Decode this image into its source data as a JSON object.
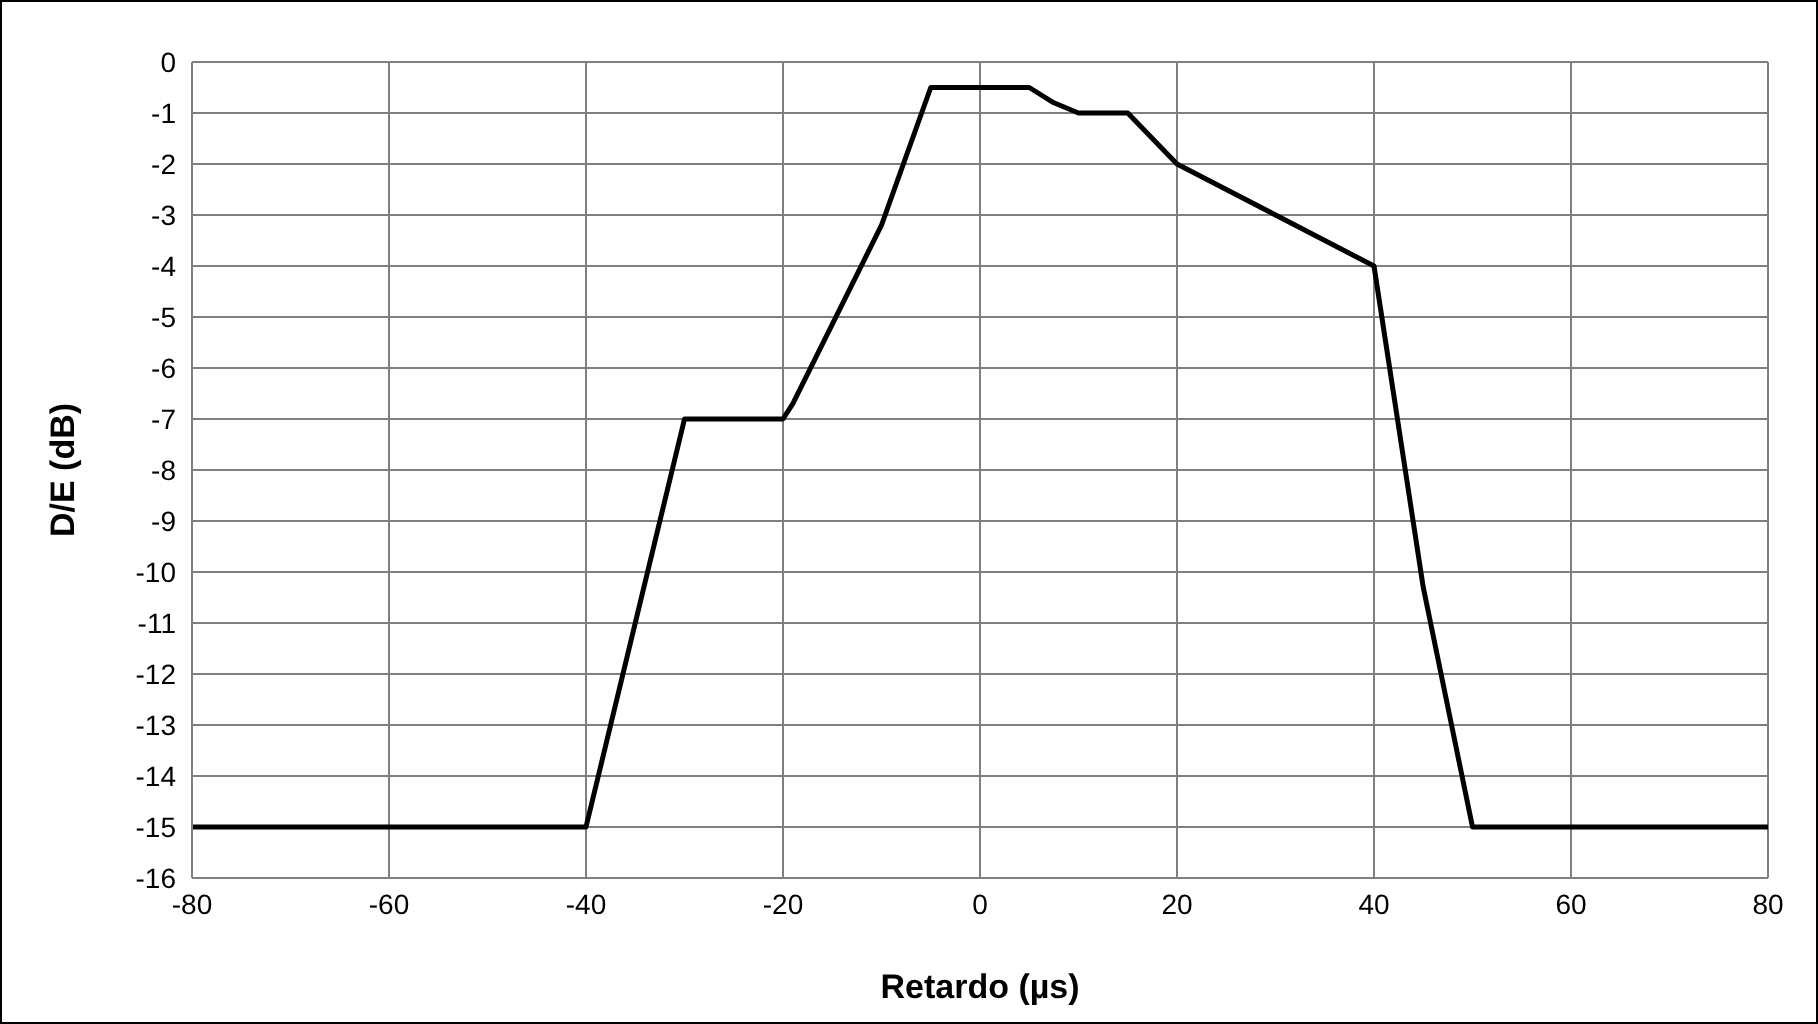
{
  "chart_data": {
    "type": "line",
    "xlabel": "Retardo (µs)",
    "ylabel": "D/E (dB)",
    "x": [
      -80,
      -40,
      -30,
      -20,
      -19,
      -10,
      -5,
      5,
      7.5,
      10,
      15,
      20,
      40,
      45,
      50,
      80
    ],
    "series": [
      {
        "color": "#000000",
        "values": [
          -15,
          -15,
          -7,
          -7,
          -6.7,
          -3.2,
          -0.5,
          -0.5,
          -0.8,
          -1,
          -1,
          -2,
          -4,
          -10.3,
          -15,
          -15
        ]
      }
    ],
    "xlim": [
      -80,
      80
    ],
    "xticks": [
      -80,
      -60,
      -40,
      -20,
      0,
      20,
      40,
      60,
      80
    ],
    "ylim": [
      -16,
      0
    ],
    "yticks": [
      -16,
      -15,
      -14,
      -13,
      -12,
      -11,
      -10,
      -9,
      -8,
      -7,
      -6,
      -5,
      -4,
      -3,
      -2,
      -1,
      0
    ],
    "grid": true,
    "legend": false,
    "marker": "none",
    "line_style": "solid"
  }
}
